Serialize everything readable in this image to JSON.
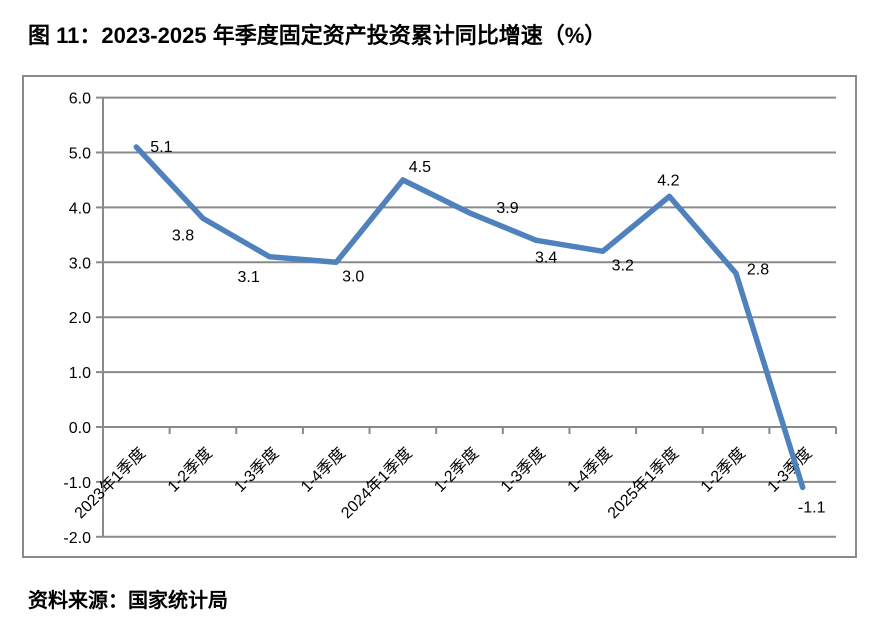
{
  "title": "图 11：2023-2025 年季度固定资产投资累计同比增速（%）",
  "source": "资料来源：国家统计局",
  "colors": {
    "line": "#4F81BD",
    "grid": "#8A8A8A",
    "frame": "#8A8A8A",
    "text": "#000000",
    "background": "#FFFFFF"
  },
  "chart_data": {
    "type": "line",
    "title": "图 11：2023-2025 年季度固定资产投资累计同比增速（%）",
    "categories": [
      "2023年1季度",
      "1-2季度",
      "1-3季度",
      "1-4季度",
      "2024年1季度",
      "1-2季度",
      "1-3季度",
      "1-4季度",
      "2025年1季度",
      "1-2季度",
      "1-3季度"
    ],
    "values": [
      5.1,
      3.8,
      3.1,
      3.0,
      4.5,
      3.9,
      3.4,
      3.2,
      4.2,
      2.8,
      -1.1
    ],
    "data_labels": [
      "5.1",
      "3.8",
      "3.1",
      "3.0",
      "4.5",
      "3.9",
      "3.4",
      "3.2",
      "4.2",
      "2.8",
      "-1.1"
    ],
    "xlabel": "",
    "ylabel": "",
    "ylim": [
      -2.0,
      6.0
    ],
    "ytick_step": 1.0,
    "ytick_labels": [
      "6.0",
      "5.0",
      "4.0",
      "3.0",
      "2.0",
      "1.0",
      "0.0",
      "-1.0",
      "-2.0"
    ],
    "grid": true,
    "legend_position": "none",
    "x_label_rotation_deg": 45
  }
}
